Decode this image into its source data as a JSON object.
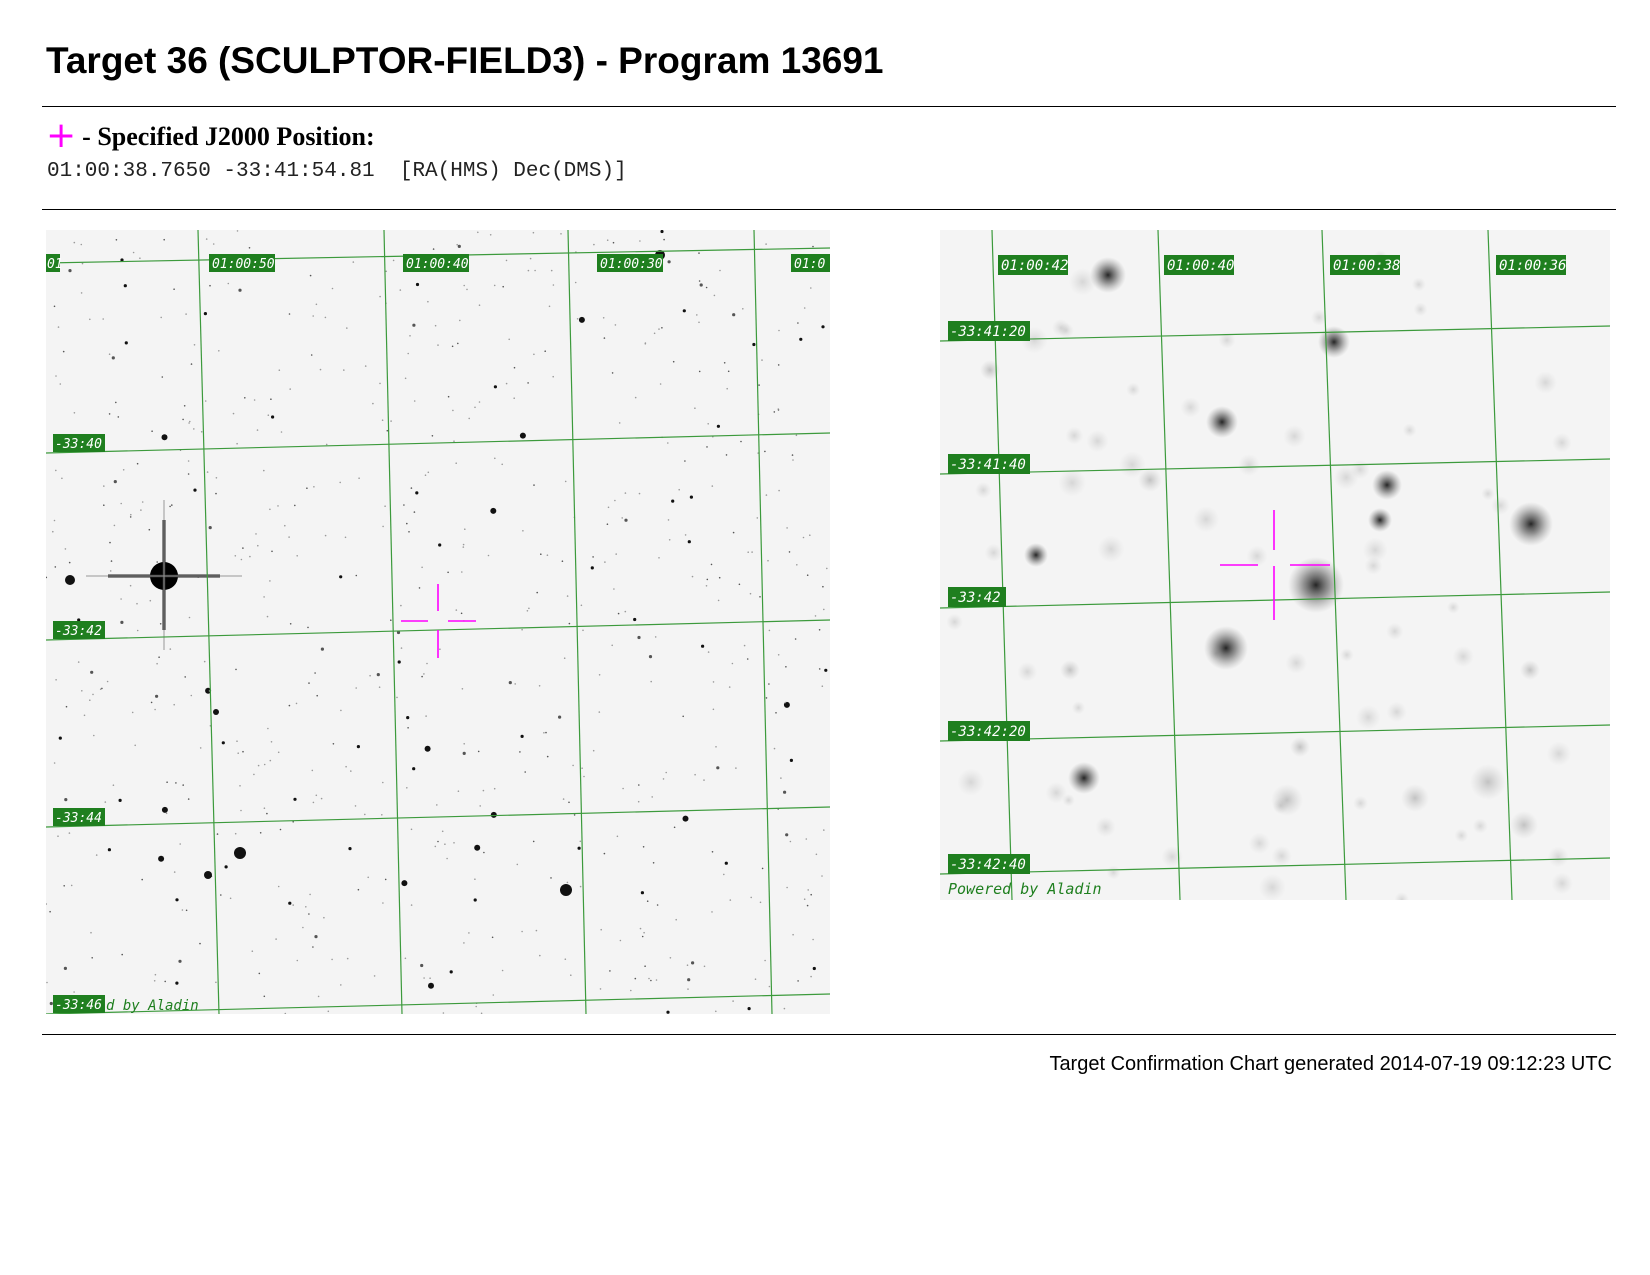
{
  "page": {
    "title": "Target 36 (SCULPTOR-FIELD3) - Program 13691",
    "position_label": "- Specified J2000 Position:",
    "position_marker": "+",
    "coordinates": "01:00:38.7650 -33:41:54.81  [RA(HMS) Dec(DMS)]",
    "footer": "Target Confirmation Chart generated 2014-07-19 09:12:23 UTC"
  },
  "colors": {
    "grid": "#3c9a3c",
    "label_bg": "#1f7f1f",
    "crosshair": "#ff00ff",
    "sky": "#f4f4f4"
  },
  "wide_chart": {
    "ra_labels": [
      "01:00:50",
      "01:00:40",
      "01:00:30",
      "01:0",
      "01"
    ],
    "dec_labels": [
      "-33:40",
      "-33:42",
      "-33:44",
      "-33:46"
    ],
    "credit": "d by Aladin"
  },
  "zoom_chart": {
    "ra_labels": [
      "01:00:42",
      "01:00:40",
      "01:00:38",
      "01:00:36"
    ],
    "dec_labels": [
      "-33:41:20",
      "-33:41:40",
      "-33:42",
      "-33:42:20",
      "-33:42:40"
    ],
    "credit": "Powered by Aladin"
  }
}
